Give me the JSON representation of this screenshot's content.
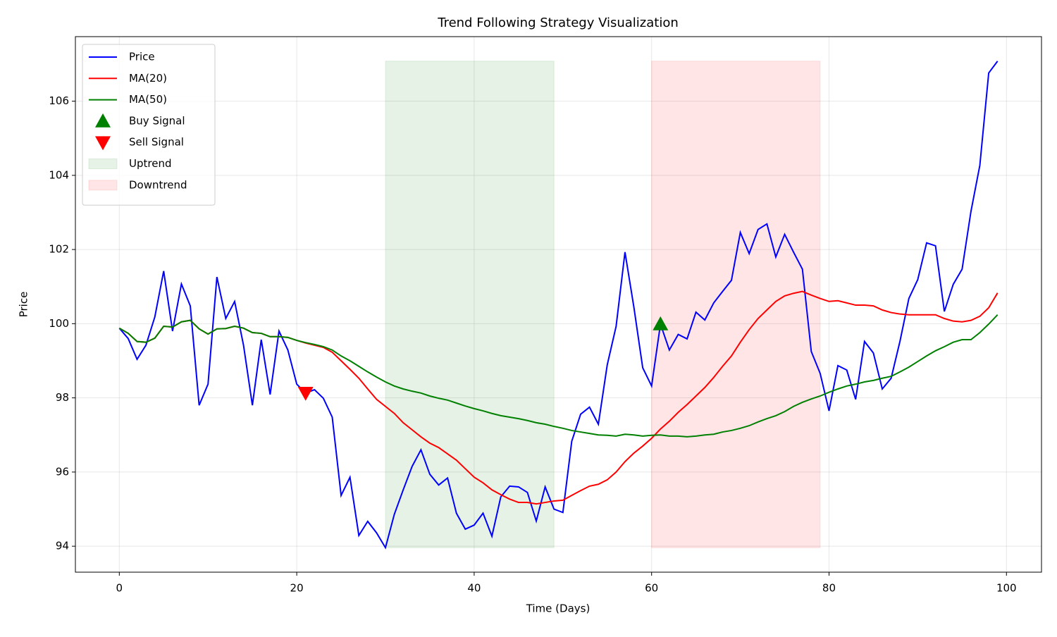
{
  "chart_data": {
    "type": "line",
    "title": "Trend Following Strategy Visualization",
    "x_label": "Time (Days)",
    "y_label": "Price",
    "x": [
      0,
      1,
      2,
      3,
      4,
      5,
      6,
      7,
      8,
      9,
      10,
      11,
      12,
      13,
      14,
      15,
      16,
      17,
      18,
      19,
      20,
      21,
      22,
      23,
      24,
      25,
      26,
      27,
      28,
      29,
      30,
      31,
      32,
      33,
      34,
      35,
      36,
      37,
      38,
      39,
      40,
      41,
      42,
      43,
      44,
      45,
      46,
      47,
      48,
      49,
      50,
      51,
      52,
      53,
      54,
      55,
      56,
      57,
      58,
      59,
      60,
      61,
      62,
      63,
      64,
      65,
      66,
      67,
      68,
      69,
      70,
      71,
      72,
      73,
      74,
      75,
      76,
      77,
      78,
      79,
      80,
      81,
      82,
      83,
      84,
      85,
      86,
      87,
      88,
      89,
      90,
      91,
      92,
      93,
      94,
      95,
      96,
      97,
      98,
      99
    ],
    "series": [
      {
        "name": "Price",
        "color": "#0000ff",
        "values": [
          99.88,
          99.6,
          99.04,
          99.42,
          100.18,
          101.42,
          99.8,
          101.07,
          100.48,
          97.8,
          98.37,
          101.26,
          100.14,
          100.6,
          99.42,
          97.8,
          99.57,
          98.09,
          99.8,
          99.29,
          98.37,
          98.13,
          98.22,
          97.99,
          97.48,
          95.37,
          95.86,
          94.29,
          94.67,
          94.36,
          93.96,
          94.86,
          95.52,
          96.15,
          96.6,
          95.94,
          95.65,
          95.84,
          94.89,
          94.46,
          94.57,
          94.89,
          94.27,
          95.33,
          95.62,
          95.6,
          95.45,
          94.68,
          95.6,
          95.0,
          94.91,
          96.83,
          97.56,
          97.75,
          97.29,
          98.89,
          99.93,
          101.93,
          100.45,
          98.81,
          98.32,
          99.99,
          99.29,
          99.71,
          99.59,
          100.31,
          100.1,
          100.56,
          100.87,
          101.17,
          102.46,
          101.89,
          102.54,
          102.69,
          101.8,
          102.41,
          101.93,
          101.47,
          99.25,
          98.66,
          97.65,
          98.87,
          98.75,
          97.96,
          99.52,
          99.21,
          98.24,
          98.53,
          99.53,
          100.68,
          101.19,
          102.18,
          102.1,
          100.33,
          101.06,
          101.47,
          103.03,
          104.27,
          106.76,
          107.08
        ]
      },
      {
        "name": "MA(20)",
        "color": "#ff0000",
        "values": [
          99.88,
          99.74,
          99.52,
          99.5,
          99.61,
          99.93,
          99.91,
          100.05,
          100.09,
          99.86,
          99.72,
          99.86,
          99.87,
          99.93,
          99.88,
          99.76,
          99.74,
          99.65,
          99.65,
          99.63,
          99.55,
          99.48,
          99.42,
          99.36,
          99.23,
          99.0,
          98.77,
          98.53,
          98.24,
          97.96,
          97.77,
          97.58,
          97.33,
          97.14,
          96.95,
          96.78,
          96.66,
          96.49,
          96.32,
          96.09,
          95.86,
          95.71,
          95.52,
          95.39,
          95.27,
          95.18,
          95.18,
          95.14,
          95.18,
          95.22,
          95.24,
          95.37,
          95.5,
          95.62,
          95.67,
          95.79,
          96.0,
          96.28,
          96.51,
          96.7,
          96.91,
          97.16,
          97.37,
          97.61,
          97.82,
          98.05,
          98.28,
          98.55,
          98.85,
          99.13,
          99.5,
          99.84,
          100.14,
          100.37,
          100.6,
          100.75,
          100.82,
          100.87,
          100.77,
          100.68,
          100.6,
          100.62,
          100.56,
          100.5,
          100.5,
          100.48,
          100.37,
          100.3,
          100.26,
          100.24,
          100.24,
          100.24,
          100.24,
          100.14,
          100.07,
          100.05,
          100.09,
          100.2,
          100.43,
          100.83
        ]
      },
      {
        "name": "MA(50)",
        "color": "#008000",
        "values": [
          99.88,
          99.74,
          99.52,
          99.5,
          99.61,
          99.93,
          99.91,
          100.05,
          100.09,
          99.86,
          99.72,
          99.86,
          99.87,
          99.93,
          99.88,
          99.76,
          99.74,
          99.65,
          99.65,
          99.63,
          99.55,
          99.49,
          99.44,
          99.38,
          99.29,
          99.13,
          99.0,
          98.85,
          98.7,
          98.56,
          98.43,
          98.32,
          98.24,
          98.18,
          98.13,
          98.05,
          97.99,
          97.94,
          97.86,
          97.78,
          97.71,
          97.65,
          97.58,
          97.52,
          97.48,
          97.44,
          97.39,
          97.33,
          97.29,
          97.23,
          97.18,
          97.12,
          97.08,
          97.04,
          97.0,
          96.99,
          96.97,
          97.02,
          97.0,
          96.97,
          96.99,
          97.0,
          96.97,
          96.97,
          96.95,
          96.97,
          97.0,
          97.02,
          97.08,
          97.12,
          97.18,
          97.25,
          97.35,
          97.44,
          97.52,
          97.63,
          97.77,
          97.88,
          97.97,
          98.05,
          98.15,
          98.24,
          98.32,
          98.37,
          98.43,
          98.47,
          98.53,
          98.58,
          98.7,
          98.83,
          98.98,
          99.13,
          99.27,
          99.38,
          99.5,
          99.57,
          99.57,
          99.76,
          99.99,
          100.24
        ]
      }
    ],
    "markers": [
      {
        "name": "Buy Signal",
        "color": "#008000",
        "marker": "triangle-up",
        "x": [
          61
        ],
        "y": [
          99.99
        ]
      },
      {
        "name": "Sell Signal",
        "color": "#ff0000",
        "marker": "triangle-down",
        "x": [
          21
        ],
        "y": [
          98.13
        ]
      }
    ],
    "shades": [
      {
        "name": "Uptrend",
        "color": "#008000",
        "x": [
          30,
          49
        ],
        "y": [
          93.96,
          107.08
        ]
      },
      {
        "name": "Downtrend",
        "color": "#ff0000",
        "x": [
          60,
          79
        ],
        "y": [
          93.96,
          107.08
        ]
      }
    ],
    "xlim": [
      -4.95,
      103.95
    ],
    "ylim": [
      93.3,
      107.74
    ],
    "xticks": [
      0,
      20,
      40,
      60,
      80,
      100
    ],
    "yticks": [
      94,
      96,
      98,
      100,
      102,
      104,
      106
    ],
    "grid": true,
    "legend": "upper left"
  }
}
